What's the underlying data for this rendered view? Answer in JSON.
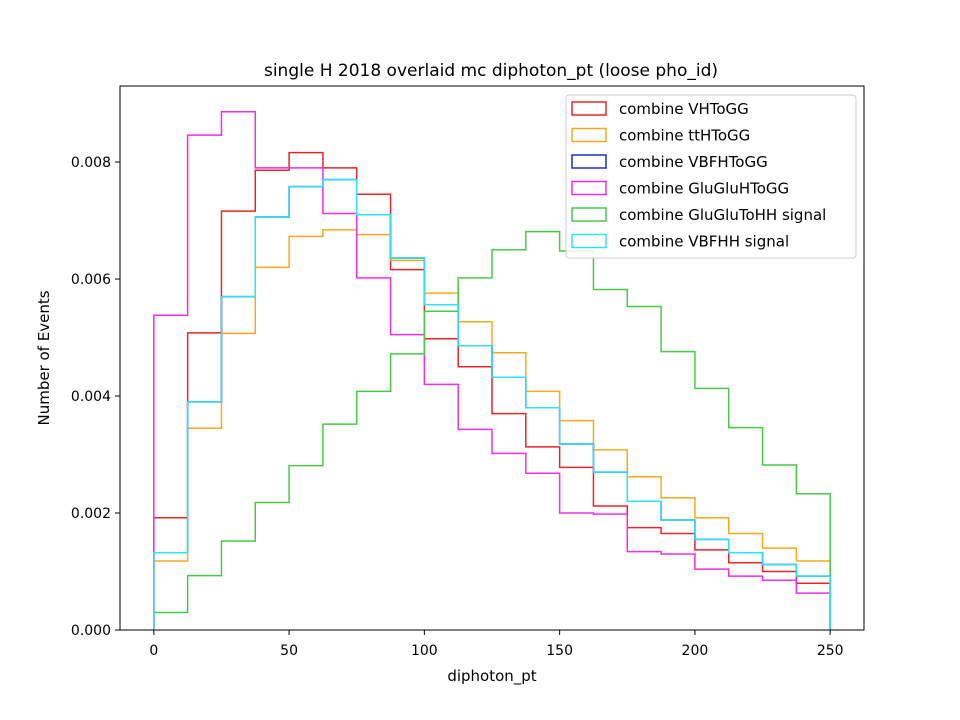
{
  "chart_data": {
    "type": "histogram-step",
    "title": "single H 2018 overlaid mc diphoton_pt (loose pho_id)",
    "xlabel": "diphoton_pt",
    "ylabel": "Number of Events",
    "xlim": [
      -12.5,
      262.5
    ],
    "ylim": [
      0,
      0.0093
    ],
    "xticks": [
      0,
      50,
      100,
      150,
      200,
      250
    ],
    "yticks": [
      0.0,
      0.002,
      0.004,
      0.006,
      0.008
    ],
    "ytick_labels": [
      "0.000",
      "0.002",
      "0.004",
      "0.006",
      "0.008"
    ],
    "bin_edges": [
      0,
      12.5,
      25,
      37.5,
      50,
      62.5,
      75,
      87.5,
      100,
      112.5,
      125,
      137.5,
      150,
      162.5,
      175,
      187.5,
      200,
      212.5,
      225,
      237.5,
      250
    ],
    "legend_position": "upper right",
    "series": [
      {
        "name": "combine VHToGG",
        "color": "#e8262a",
        "values": [
          0.00192,
          0.00508,
          0.00716,
          0.00786,
          0.00816,
          0.0079,
          0.00745,
          0.00616,
          0.00498,
          0.0045,
          0.0037,
          0.00313,
          0.00278,
          0.00212,
          0.00175,
          0.00165,
          0.00137,
          0.00115,
          0.001,
          0.0008
        ]
      },
      {
        "name": "combine ttHToGG",
        "color": "#f5aa1c",
        "values": [
          0.00118,
          0.00345,
          0.00507,
          0.0062,
          0.00673,
          0.00684,
          0.00676,
          0.00632,
          0.00576,
          0.00527,
          0.00474,
          0.00408,
          0.00358,
          0.00308,
          0.00262,
          0.00226,
          0.00192,
          0.00165,
          0.0014,
          0.00118
        ]
      },
      {
        "name": "combine VBFHToGG",
        "color": "#1f2bcc",
        "values": [
          0.00132,
          0.0039,
          0.0057,
          0.00706,
          0.00758,
          0.0077,
          0.0071,
          0.00636,
          0.00556,
          0.00486,
          0.00432,
          0.0038,
          0.00318,
          0.0027,
          0.0022,
          0.00188,
          0.00155,
          0.00132,
          0.00112,
          0.00092
        ]
      },
      {
        "name": "combine GluGluHToGG",
        "color": "#ee2ee8",
        "values": [
          0.00538,
          0.00846,
          0.00886,
          0.0079,
          0.0079,
          0.00712,
          0.00602,
          0.00505,
          0.0042,
          0.00343,
          0.00302,
          0.00268,
          0.002,
          0.00198,
          0.00134,
          0.0013,
          0.00104,
          0.00092,
          0.00085,
          0.00063
        ]
      },
      {
        "name": "combine GluGluToHH signal",
        "color": "#48c94a",
        "values": [
          0.0003,
          0.00093,
          0.00152,
          0.00218,
          0.00281,
          0.00352,
          0.00408,
          0.00472,
          0.00545,
          0.00602,
          0.0065,
          0.00681,
          0.00648,
          0.00582,
          0.00553,
          0.00476,
          0.00413,
          0.00346,
          0.00282,
          0.00233
        ]
      },
      {
        "name": "combine VBFHH signal",
        "color": "#2ee4f2",
        "values": [
          0.00132,
          0.0039,
          0.0057,
          0.00706,
          0.00758,
          0.0077,
          0.0071,
          0.00636,
          0.00556,
          0.00486,
          0.00432,
          0.0038,
          0.00318,
          0.0027,
          0.0022,
          0.00188,
          0.00155,
          0.00132,
          0.00112,
          0.00092
        ]
      }
    ]
  }
}
